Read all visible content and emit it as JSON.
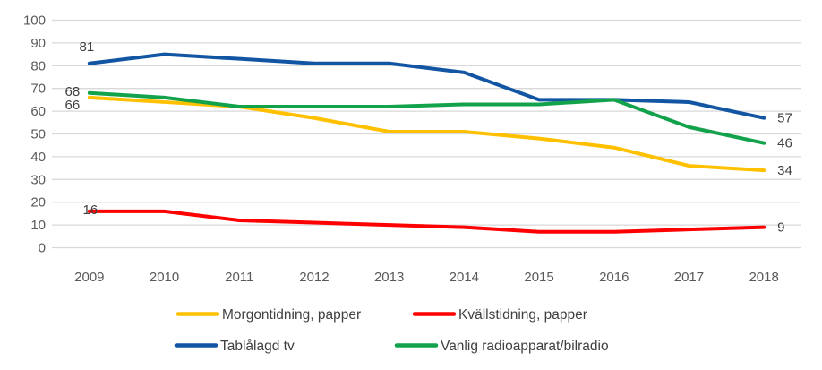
{
  "chart_data": {
    "type": "line",
    "title": "",
    "xlabel": "",
    "ylabel": "",
    "categories": [
      "2009",
      "2010",
      "2011",
      "2012",
      "2013",
      "2014",
      "2015",
      "2016",
      "2017",
      "2018"
    ],
    "series": [
      {
        "name": "Morgontidning, papper",
        "color": "#FFC000",
        "values": [
          66,
          64,
          62,
          57,
          51,
          51,
          48,
          44,
          36,
          34
        ],
        "first_label": "66",
        "last_label": "34"
      },
      {
        "name": "Kvällstidning, papper",
        "color": "#FF0000",
        "values": [
          16,
          16,
          12,
          11,
          10,
          9,
          7,
          7,
          8,
          9
        ],
        "first_label": "16",
        "last_label": "9"
      },
      {
        "name": "Tablålagd tv",
        "color": "#1155A3",
        "values": [
          81,
          85,
          83,
          81,
          81,
          77,
          65,
          65,
          64,
          57
        ],
        "first_label": "81",
        "last_label": "57"
      },
      {
        "name": "Vanlig radioapparat/bilradio",
        "color": "#12A24B",
        "values": [
          68,
          66,
          62,
          62,
          62,
          63,
          63,
          65,
          53,
          46
        ],
        "first_label": "68",
        "last_label": "46"
      }
    ],
    "ylim": [
      0,
      100
    ],
    "yticks": [
      0,
      10,
      20,
      30,
      40,
      50,
      60,
      70,
      80,
      90,
      100
    ],
    "grid": "horizontal",
    "legend_position": "bottom",
    "colors": {
      "gridline": "#D9D9D9",
      "axis_tick_text": "#595959",
      "data_label_text": "#404040",
      "legend_text": "#3F3F3F",
      "background": "#FFFFFF"
    }
  }
}
